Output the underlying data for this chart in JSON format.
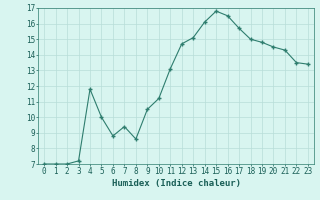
{
  "x": [
    0,
    1,
    2,
    3,
    4,
    5,
    6,
    7,
    8,
    9,
    10,
    11,
    12,
    13,
    14,
    15,
    16,
    17,
    18,
    19,
    20,
    21,
    22,
    23
  ],
  "y": [
    7.0,
    7.0,
    7.0,
    7.2,
    11.8,
    10.0,
    8.8,
    9.4,
    8.6,
    10.5,
    11.2,
    13.1,
    14.7,
    15.1,
    16.1,
    16.8,
    16.5,
    15.7,
    15.0,
    14.8,
    14.5,
    14.3,
    13.5,
    13.4
  ],
  "line_color": "#2e7d6e",
  "marker": "+",
  "marker_size": 3.0,
  "bg_color": "#d8f5f0",
  "grid_color": "#b8ddd8",
  "xlabel": "Humidex (Indice chaleur)",
  "xlim": [
    -0.5,
    23.5
  ],
  "ylim": [
    7,
    17
  ],
  "yticks": [
    7,
    8,
    9,
    10,
    11,
    12,
    13,
    14,
    15,
    16,
    17
  ],
  "xticks": [
    0,
    1,
    2,
    3,
    4,
    5,
    6,
    7,
    8,
    9,
    10,
    11,
    12,
    13,
    14,
    15,
    16,
    17,
    18,
    19,
    20,
    21,
    22,
    23
  ],
  "tick_fontsize": 5.5,
  "xlabel_fontsize": 6.5,
  "xlabel_color": "#1a5f57",
  "tick_color": "#1a5f57",
  "spine_color": "#2e7d6e"
}
